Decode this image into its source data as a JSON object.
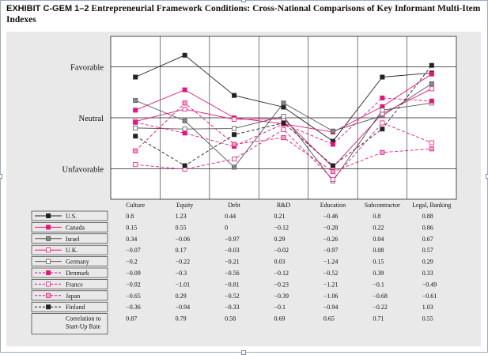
{
  "chart_data": {
    "type": "line",
    "title_label": "EXHIBIT C-GEM 1–2",
    "title": "Entrepreneurial Framework Conditions: Cross-National Comparisons of Key Informant Multi-Item Indexes",
    "y_levels": [
      "Favorable",
      "Neutral",
      "Unfavorable"
    ],
    "ylim": [
      -1.6,
      1.6
    ],
    "categories": [
      "Culture",
      "Equity",
      "Debt",
      "R&D",
      "Education",
      "Subcontractor",
      "Legal, Banking"
    ],
    "series": [
      {
        "name": "U.S.",
        "color": "#222222",
        "dashed": false,
        "fill": "#222222",
        "values": [
          0.8,
          1.23,
          0.44,
          0.21,
          -0.46,
          0.8,
          0.88
        ]
      },
      {
        "name": "Canada",
        "color": "#e8137f",
        "dashed": false,
        "fill": "#e8137f",
        "values": [
          0.15,
          0.55,
          0,
          -0.12,
          -0.28,
          0.22,
          0.86
        ]
      },
      {
        "name": "Israel",
        "color": "#555555",
        "dashed": false,
        "fill": "#888888",
        "values": [
          0.34,
          -0.06,
          -0.97,
          0.29,
          -0.26,
          0.04,
          0.67
        ]
      },
      {
        "name": "U.K.",
        "color": "#e8137f",
        "dashed": false,
        "fill": "#ffffff",
        "values": [
          -0.07,
          0.17,
          -0.03,
          -0.02,
          -0.97,
          0.08,
          0.57
        ]
      },
      {
        "name": "Germany",
        "color": "#555555",
        "dashed": false,
        "fill": "#ffffff",
        "values": [
          -0.2,
          -0.22,
          -0.21,
          0.03,
          -1.24,
          0.15,
          0.29
        ]
      },
      {
        "name": "Denmark",
        "color": "#e8137f",
        "dashed": true,
        "fill": "#e8137f",
        "values": [
          -0.09,
          -0.3,
          -0.56,
          -0.12,
          -0.52,
          0.39,
          0.33
        ]
      },
      {
        "name": "France",
        "color": "#e8137f",
        "dashed": true,
        "fill": "#ffffff",
        "values": [
          -0.92,
          -1.01,
          -0.81,
          -0.23,
          -1.21,
          -0.1,
          -0.49
        ]
      },
      {
        "name": "Japan",
        "color": "#e8137f",
        "dashed": true,
        "fill": "#f4a0c8",
        "values": [
          -0.65,
          0.29,
          -0.52,
          -0.39,
          -1.06,
          -0.68,
          -0.61
        ]
      },
      {
        "name": "Finland",
        "color": "#222222",
        "dashed": true,
        "fill": "#222222",
        "values": [
          -0.36,
          -0.94,
          -0.33,
          -0.1,
          -0.94,
          -0.22,
          1.03
        ]
      }
    ],
    "correlation": {
      "label": "Correlation to Start-Up Rate",
      "values": [
        0.87,
        0.79,
        0.58,
        0.69,
        0.65,
        0.71,
        0.55
      ]
    }
  }
}
